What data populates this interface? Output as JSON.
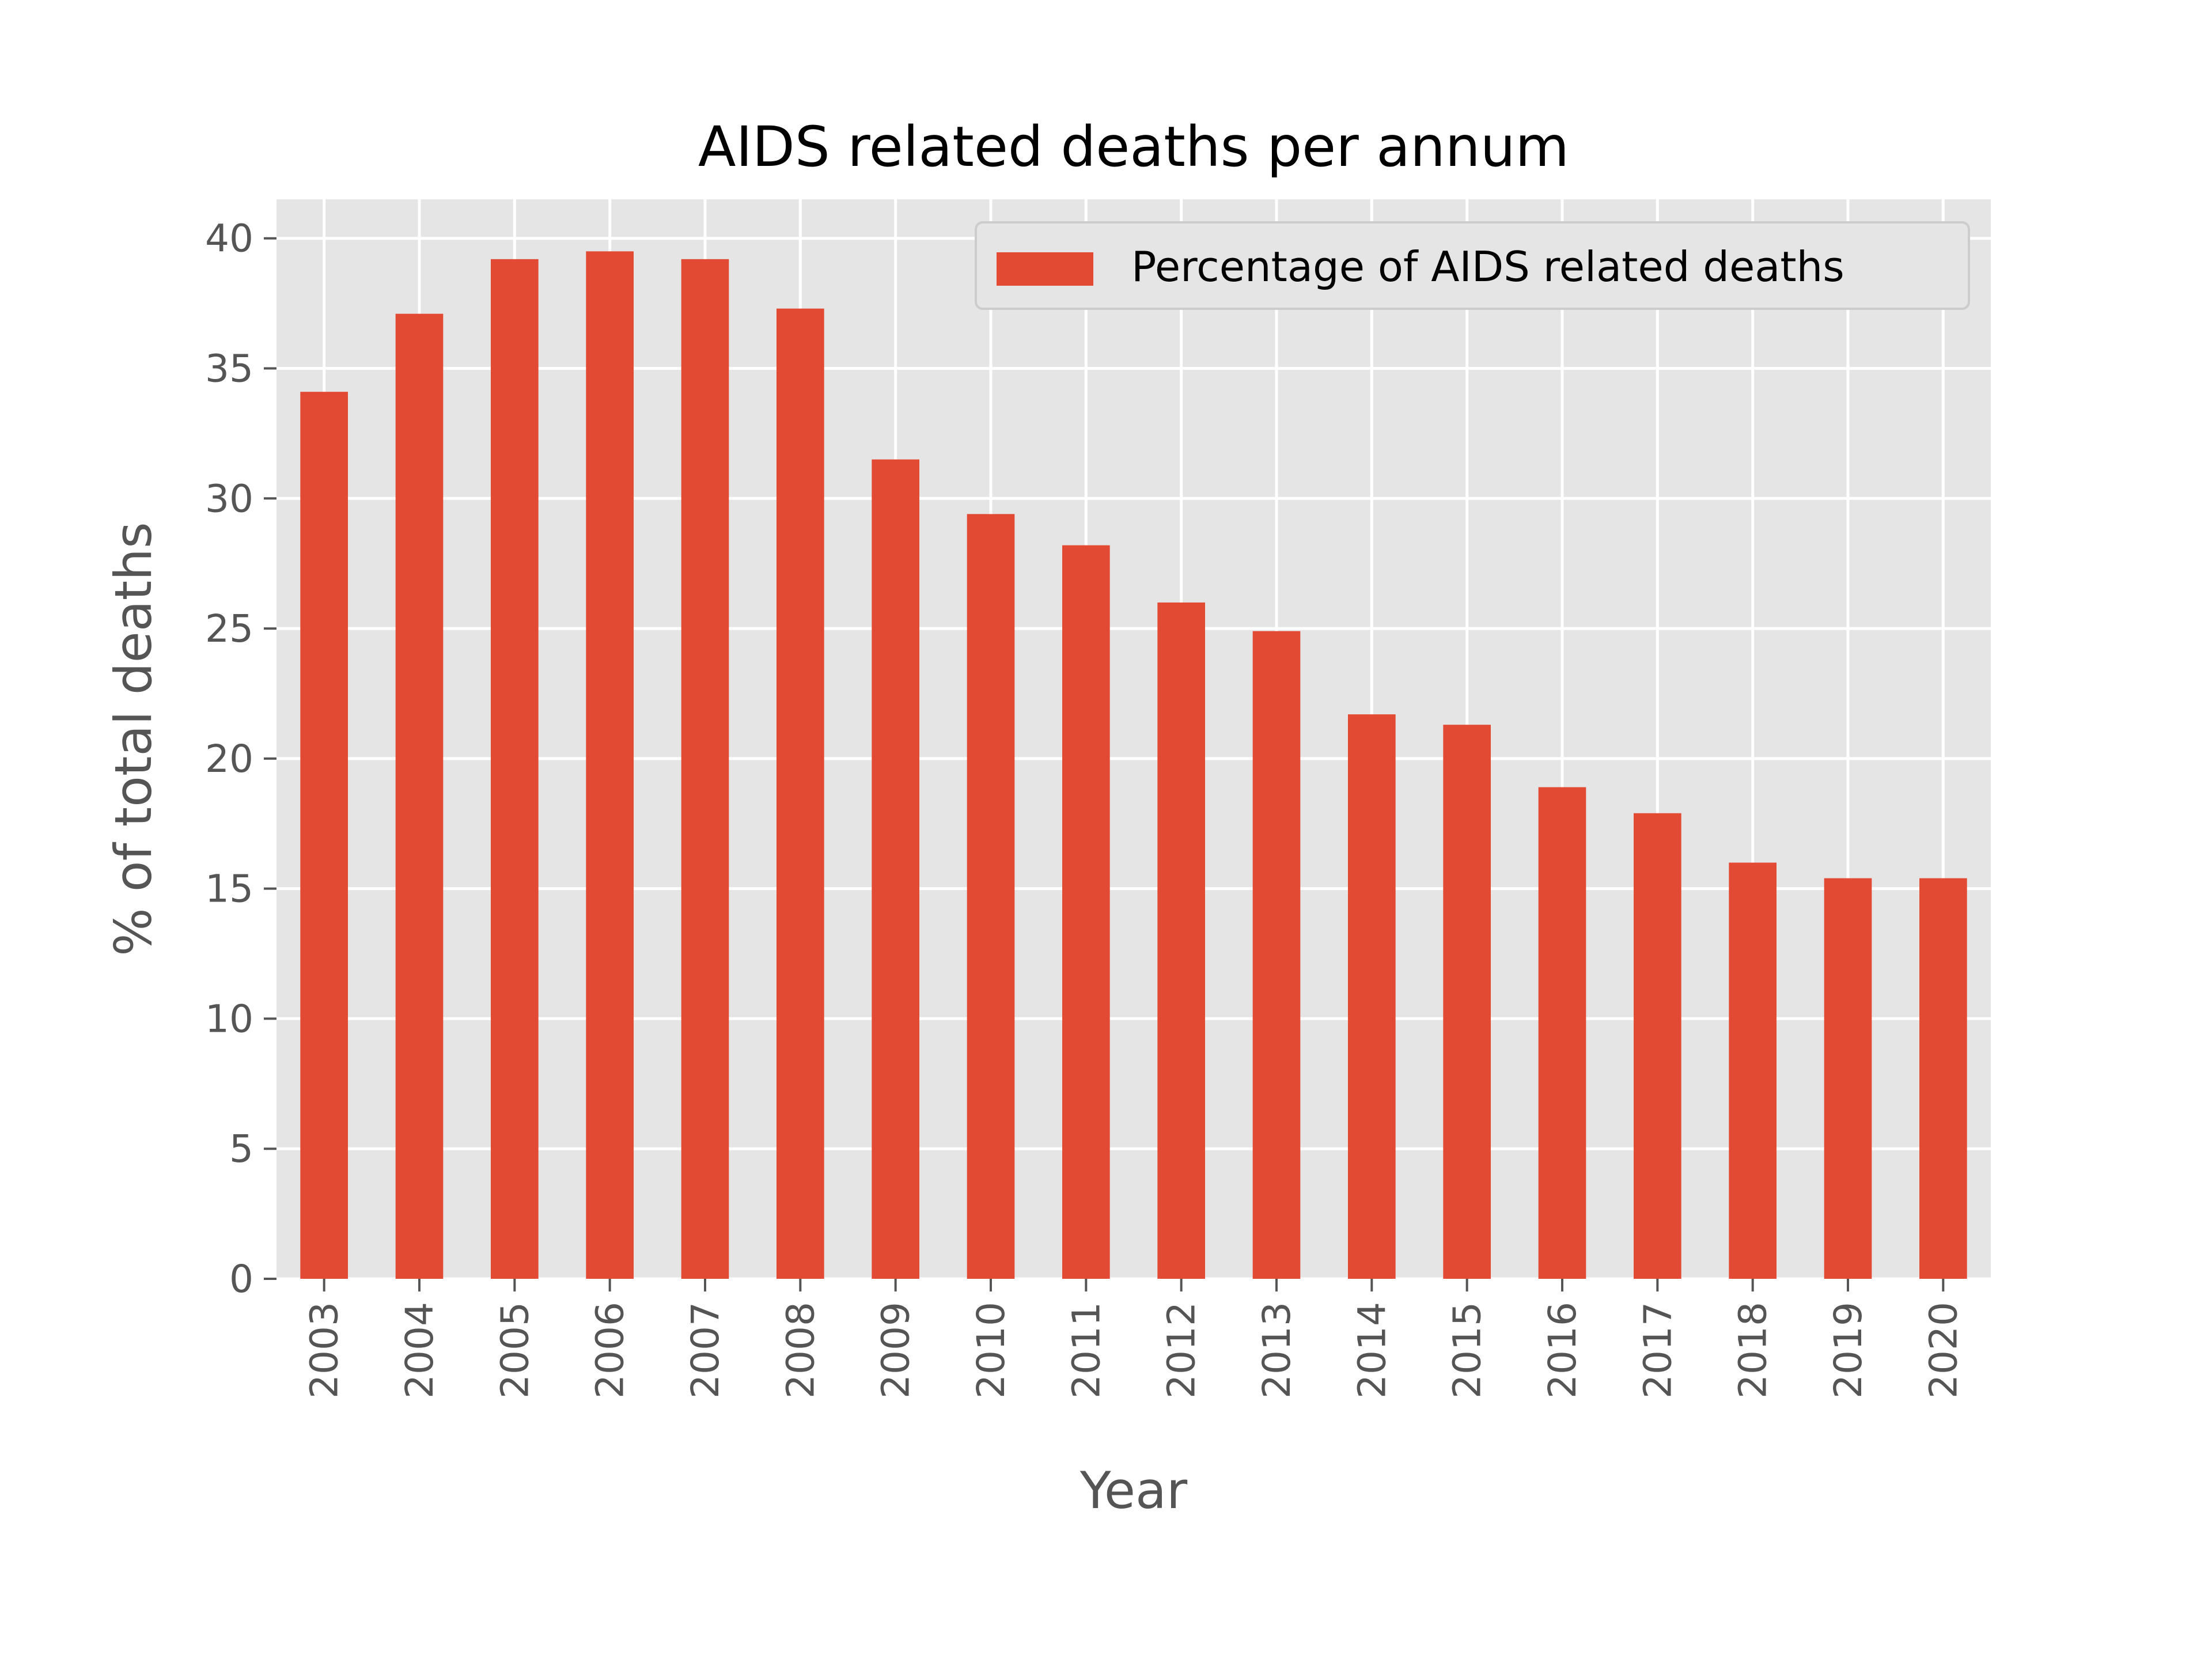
{
  "chart_data": {
    "type": "bar",
    "title": "AIDS related deaths per annum",
    "xlabel": "Year",
    "ylabel": "% of total deaths",
    "categories": [
      "2003",
      "2004",
      "2005",
      "2006",
      "2007",
      "2008",
      "2009",
      "2010",
      "2011",
      "2012",
      "2013",
      "2014",
      "2015",
      "2016",
      "2017",
      "2018",
      "2019",
      "2020"
    ],
    "series": [
      {
        "name": "Percentage of AIDS related deaths",
        "values": [
          34.1,
          37.1,
          39.2,
          39.5,
          39.2,
          37.3,
          31.5,
          29.4,
          28.2,
          26.0,
          24.9,
          21.7,
          21.3,
          18.9,
          17.9,
          16.0,
          15.4,
          15.4
        ]
      }
    ],
    "ylim": [
      0,
      41.5
    ],
    "yticks": [
      0,
      5,
      10,
      15,
      20,
      25,
      30,
      35,
      40
    ],
    "grid": true,
    "legend_position": "top-right",
    "colors": {
      "bar": "#E24A33",
      "plot_background": "#E5E5E5",
      "grid": "#FFFFFF",
      "tick_text": "#555555",
      "title_text": "#000000"
    }
  }
}
